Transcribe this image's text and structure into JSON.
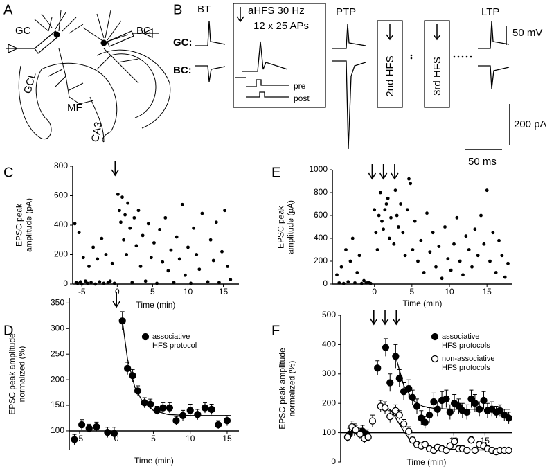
{
  "panel_a": {
    "letter": "A",
    "labels": [
      "GC",
      "BC",
      "GCL",
      "MF",
      "CA3"
    ]
  },
  "panel_b": {
    "letter": "B",
    "bt": "BT",
    "gc": "GC:",
    "bc": "BC:",
    "protocol": "aHFS 30 Hz",
    "trains": "12 x 25 APs",
    "pre": "pre",
    "post": "post",
    "ptp": "PTP",
    "second": "2nd HFS",
    "third": "3rd HFS",
    "ltp": "LTP",
    "scale_mv": "50 mV",
    "scale_pa": "200 pA",
    "scale_ms": "50 ms"
  },
  "chart_data": [
    {
      "type": "scatter",
      "letter": "C",
      "ylabel": "EPSC peak amplitude (pA)",
      "xlabel": "Time (min)",
      "xlim": [
        -6.3,
        17.2
      ],
      "ylim": [
        0,
        800
      ],
      "xticks": [
        -5,
        0,
        5,
        10,
        15
      ],
      "yticks": [
        0,
        200,
        400,
        600,
        800
      ],
      "arrows": [
        -0.3
      ],
      "series": [
        {
          "name": null,
          "fill": "#000",
          "x": [
            -6,
            -5.8,
            -5.6,
            -5.4,
            -5.2,
            -5,
            -4.8,
            -4.5,
            -4.2,
            -4,
            -3.7,
            -3.4,
            -3.1,
            -2.8,
            -2.5,
            -2.2,
            -1.9,
            -1.6,
            -1.3,
            -1,
            -0.7,
            -0.4,
            0.1,
            0.3,
            0.5,
            0.7,
            0.9,
            1.1,
            1.3,
            1.5,
            1.8,
            2.1,
            2.4,
            2.7,
            3,
            3.3,
            3.6,
            4,
            4.4,
            4.8,
            5.2,
            5.6,
            6,
            6.4,
            6.8,
            7.2,
            7.6,
            8,
            8.4,
            8.8,
            9.2,
            9.6,
            10,
            10.4,
            10.8,
            11.2,
            11.6,
            12,
            12.8,
            13.2,
            13.6,
            14,
            14.4,
            14.8,
            15.2,
            15.6,
            16
          ],
          "values": [
            410,
            10,
            5,
            350,
            15,
            0,
            180,
            20,
            5,
            120,
            10,
            250,
            0,
            170,
            15,
            310,
            5,
            200,
            10,
            20,
            140,
            5,
            610,
            500,
            420,
            590,
            300,
            470,
            200,
            550,
            380,
            10,
            450,
            260,
            500,
            120,
            330,
            20,
            410,
            180,
            280,
            5,
            370,
            150,
            450,
            90,
            230,
            10,
            320,
            170,
            540,
            60,
            250,
            5,
            380,
            200,
            100,
            480,
            15,
            300,
            160,
            420,
            10,
            220,
            500,
            120,
            30
          ]
        }
      ]
    },
    {
      "type": "scatter",
      "letter": "D",
      "ylabel": "EPSC peak amplitude normalized (%)",
      "xlabel": "Time (min)",
      "xlim": [
        -6.4,
        16.6
      ],
      "ylim": [
        62,
        360
      ],
      "xticks": [
        -5,
        0,
        5,
        10,
        15
      ],
      "yticks": [
        100,
        150,
        200,
        250,
        300,
        350
      ],
      "xaxis_at": 100,
      "arrows": [
        0
      ],
      "legend": "upper right",
      "series": [
        {
          "name": "associative HFS protocol",
          "fill": "#000",
          "x": [
            -5.7,
            -4.7,
            -3.7,
            -2.7,
            -1.2,
            -0.3,
            0.8,
            1.5,
            2.2,
            2.9,
            3.8,
            4.6,
            5.5,
            6.3,
            7.2,
            8.1,
            9,
            10,
            11,
            12,
            12.9,
            13.8,
            15
          ],
          "values": [
            83,
            112,
            105,
            108,
            97,
            95,
            315,
            222,
            208,
            178,
            155,
            152,
            140,
            145,
            145,
            120,
            130,
            140,
            132,
            145,
            142,
            112,
            120
          ],
          "errors": [
            10,
            10,
            8,
            9,
            10,
            12,
            18,
            12,
            12,
            10,
            10,
            10,
            8,
            10,
            10,
            8,
            10,
            12,
            10,
            10,
            10,
            8,
            10
          ],
          "fit": {
            "x": [
              0.8,
              1.5,
              2.5,
              3.5,
              5,
              7,
              10,
              15.5
            ],
            "values": [
              315,
              240,
              185,
              158,
              140,
              132,
              130,
              130
            ]
          }
        }
      ]
    },
    {
      "type": "scatter",
      "letter": "E",
      "ylabel": "EPSC peak amplitude (pA)",
      "xlabel": "Time (min)",
      "xlim": [
        -5.6,
        18.4
      ],
      "ylim": [
        0,
        1000
      ],
      "xticks": [
        0,
        5,
        10,
        15
      ],
      "yticks": [
        0,
        200,
        400,
        600,
        800,
        1000
      ],
      "arrows": [
        -0.3,
        1.2,
        2.7
      ],
      "series": [
        {
          "name": null,
          "fill": "#000",
          "x": [
            -5,
            -4.7,
            -4.4,
            -4.1,
            -3.8,
            -3.5,
            -3.2,
            -2.9,
            -2.6,
            -2.3,
            -2,
            -1.7,
            -1.4,
            -1.1,
            -0.8,
            -0.5,
            0,
            0.2,
            0.4,
            0.6,
            0.8,
            1,
            1.2,
            1.4,
            1.6,
            1.8,
            2,
            2.2,
            2.6,
            2.8,
            3,
            3.2,
            3.5,
            3.8,
            4.1,
            4.4,
            4.6,
            4.8,
            5.1,
            5.4,
            5.8,
            6.2,
            6.6,
            7,
            7.4,
            7.8,
            8.2,
            8.6,
            9,
            9.4,
            9.8,
            10.2,
            10.6,
            11,
            11.4,
            11.8,
            12.2,
            12.6,
            13,
            13.4,
            13.8,
            14.2,
            14.6,
            15,
            15.4,
            15.8,
            16.2,
            16.6,
            17,
            17.4,
            17.8
          ],
          "values": [
            80,
            10,
            150,
            5,
            300,
            20,
            200,
            400,
            10,
            100,
            250,
            5,
            30,
            10,
            15,
            5,
            650,
            450,
            300,
            600,
            800,
            550,
            480,
            650,
            700,
            750,
            400,
            580,
            350,
            820,
            600,
            500,
            700,
            450,
            250,
            650,
            920,
            880,
            300,
            550,
            200,
            380,
            100,
            620,
            280,
            450,
            150,
            330,
            50,
            500,
            220,
            120,
            350,
            580,
            200,
            80,
            420,
            300,
            150,
            480,
            250,
            600,
            350,
            820,
            200,
            450,
            100,
            380,
            250,
            60,
            180
          ]
        }
      ]
    },
    {
      "type": "scatter",
      "letter": "F",
      "ylabel": "EPSC peak amplitude normalized (%)",
      "xlabel": "Time (min)",
      "xlim": [
        -8.1,
        19.4
      ],
      "ylim": [
        0,
        500
      ],
      "xticks": [
        10,
        15
      ],
      "yticks": [
        0,
        100,
        200,
        300,
        400,
        500
      ],
      "xaxis_at": 100,
      "arrows": [
        -2.8,
        -1.0,
        0.8
      ],
      "legend": "upper right",
      "series": [
        {
          "name": "associative HFS protocols",
          "fill": "#000",
          "x": [
            -6.7,
            -5.9,
            -5.2,
            -4.6,
            -3.9,
            -2.2,
            -0.9,
            -0.2,
            0.7,
            1.3,
            2.0,
            2.8,
            3.4,
            4.1,
            4.8,
            5.4,
            6.1,
            6.8,
            7.4,
            8.1,
            8.8,
            9.4,
            10.1,
            10.8,
            11.4,
            12.1,
            12.8,
            13.4,
            14.1,
            14.8,
            15.4,
            16.1,
            16.8,
            17.4,
            18.1,
            18.8
          ],
          "values": [
            95,
            110,
            100,
            105,
            95,
            320,
            390,
            270,
            360,
            285,
            240,
            250,
            220,
            190,
            150,
            135,
            160,
            205,
            180,
            210,
            215,
            170,
            200,
            190,
            175,
            170,
            215,
            200,
            180,
            210,
            175,
            180,
            170,
            175,
            160,
            150
          ],
          "errors": [
            20,
            20,
            15,
            20,
            15,
            25,
            30,
            30,
            40,
            30,
            30,
            30,
            25,
            25,
            25,
            20,
            25,
            30,
            25,
            30,
            30,
            25,
            30,
            25,
            25,
            25,
            30,
            30,
            25,
            30,
            25,
            25,
            20,
            20,
            20,
            20
          ],
          "fit": {
            "x": [
              0.7,
              2,
              3.5,
              5,
              7,
              10,
              15,
              19
            ],
            "values": [
              360,
              260,
              210,
              190,
              182,
              180,
              180,
              180
            ]
          }
        },
        {
          "name": "non-associative HFS protocols",
          "fill": "#fff",
          "x": [
            -7.0,
            -6.3,
            -5.7,
            -5.0,
            -4.3,
            -3.7,
            -3.0,
            -1.7,
            -1.0,
            -0.2,
            0.7,
            1.3,
            2.0,
            2.8,
            3.4,
            4.1,
            4.8,
            5.4,
            6.1,
            6.8,
            7.4,
            8.1,
            8.8,
            9.4,
            10.1,
            10.8,
            11.4,
            12.1,
            12.8,
            13.4,
            14.1,
            14.8,
            15.4,
            16.1,
            16.8,
            17.4,
            18.1,
            18.8
          ],
          "values": [
            85,
            120,
            110,
            95,
            80,
            85,
            140,
            190,
            185,
            155,
            175,
            160,
            130,
            105,
            75,
            60,
            55,
            60,
            45,
            40,
            50,
            45,
            40,
            55,
            70,
            45,
            45,
            40,
            75,
            40,
            60,
            55,
            45,
            40,
            35,
            40,
            40,
            40
          ],
          "errors": [
            15,
            20,
            15,
            15,
            15,
            15,
            20,
            20,
            20,
            20,
            20,
            15,
            15,
            15,
            10,
            10,
            10,
            10,
            10,
            10,
            10,
            10,
            10,
            10,
            12,
            10,
            10,
            10,
            12,
            10,
            10,
            10,
            10,
            10,
            8,
            8,
            8,
            8
          ],
          "fit": {
            "x": [
              -1,
              0,
              1,
              2,
              3,
              5,
              8,
              12,
              19
            ],
            "values": [
              190,
              175,
              140,
              105,
              75,
              55,
              45,
              42,
              40
            ]
          }
        }
      ]
    }
  ]
}
